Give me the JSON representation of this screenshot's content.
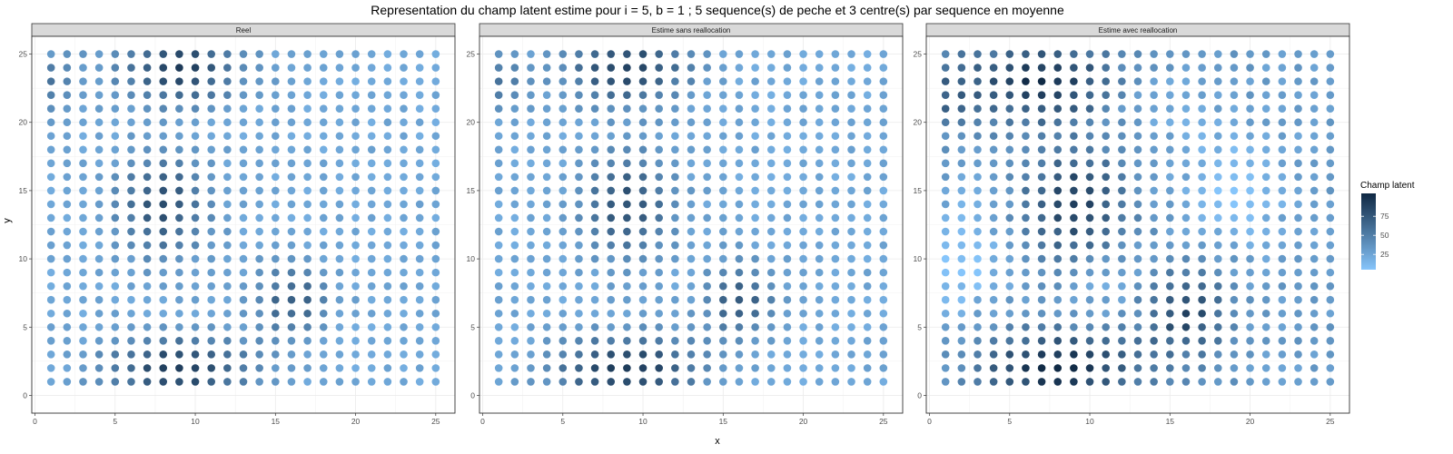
{
  "chart_data": {
    "type": "scatter",
    "title": "Representation du champ latent estime pour i = 5, b = 1 ; 5 sequence(s) de peche et 3 centre(s) par sequence en moyenne",
    "xlabel": "x",
    "ylabel": "y",
    "xlim": [
      0,
      26
    ],
    "ylim": [
      0,
      26
    ],
    "x_ticks": [
      0,
      5,
      10,
      15,
      20,
      25
    ],
    "y_ticks": [
      0,
      5,
      10,
      15,
      20,
      25
    ],
    "grid": true,
    "grid_range": [
      1,
      25
    ],
    "legend": {
      "title": "Champ latent",
      "position": "right",
      "ticks": [
        25,
        50,
        75
      ],
      "range": [
        5,
        105
      ],
      "color_low": "#86c5fb",
      "color_high": "#0f2843"
    },
    "panels": [
      {
        "name": "Reel",
        "z_base": 24,
        "z_floor": 14,
        "z_cap": 104,
        "centers": [
          {
            "x": 9,
            "y": 2,
            "amp": 70,
            "sx": 3,
            "sy": 1.6
          },
          {
            "x": 9,
            "y": 24,
            "amp": 65,
            "sx": 2.6,
            "sy": 1.8
          },
          {
            "x": 8,
            "y": 14,
            "amp": 56,
            "sx": 1.9,
            "sy": 2.6
          },
          {
            "x": 16,
            "y": 7,
            "amp": 48,
            "sx": 1.5,
            "sy": 1.8
          },
          {
            "x": 1,
            "y": 23,
            "amp": 28,
            "sx": 1.3,
            "sy": 1.5
          }
        ],
        "noise": 5
      },
      {
        "name": "Estime sans reallocation",
        "z_base": 24,
        "z_floor": 14,
        "z_cap": 104,
        "centers": [
          {
            "x": 9,
            "y": 2,
            "amp": 72,
            "sx": 3,
            "sy": 1.6
          },
          {
            "x": 9,
            "y": 24,
            "amp": 66,
            "sx": 2.6,
            "sy": 1.8
          },
          {
            "x": 9,
            "y": 14,
            "amp": 56,
            "sx": 1.9,
            "sy": 2.6
          },
          {
            "x": 16,
            "y": 7,
            "amp": 50,
            "sx": 1.5,
            "sy": 1.8
          },
          {
            "x": 1,
            "y": 23,
            "amp": 28,
            "sx": 1.3,
            "sy": 1.5
          }
        ],
        "noise": 5
      },
      {
        "name": "Estime avec reallocation",
        "z_base": 32,
        "z_floor": 5,
        "z_cap": 104,
        "centers": [
          {
            "x": 8,
            "y": 2,
            "amp": 72,
            "sx": 3.4,
            "sy": 1.8
          },
          {
            "x": 7,
            "y": 23,
            "amp": 68,
            "sx": 3.2,
            "sy": 2.0
          },
          {
            "x": 9,
            "y": 14,
            "amp": 60,
            "sx": 2.1,
            "sy": 2.8
          },
          {
            "x": 16,
            "y": 6,
            "amp": 54,
            "sx": 1.8,
            "sy": 2.1
          },
          {
            "x": 1,
            "y": 22,
            "amp": 30,
            "sx": 1.4,
            "sy": 1.9
          },
          {
            "x": 2,
            "y": 10,
            "amp": -26,
            "sx": 1.8,
            "sy": 3.0
          },
          {
            "x": 19,
            "y": 15,
            "amp": -27,
            "sx": 2.2,
            "sy": 2.8
          },
          {
            "x": 11,
            "y": 8,
            "amp": -12,
            "sx": 1.6,
            "sy": 1.6
          },
          {
            "x": 14,
            "y": 21,
            "amp": -10,
            "sx": 2.4,
            "sy": 2.0
          }
        ],
        "noise": 7
      }
    ]
  }
}
